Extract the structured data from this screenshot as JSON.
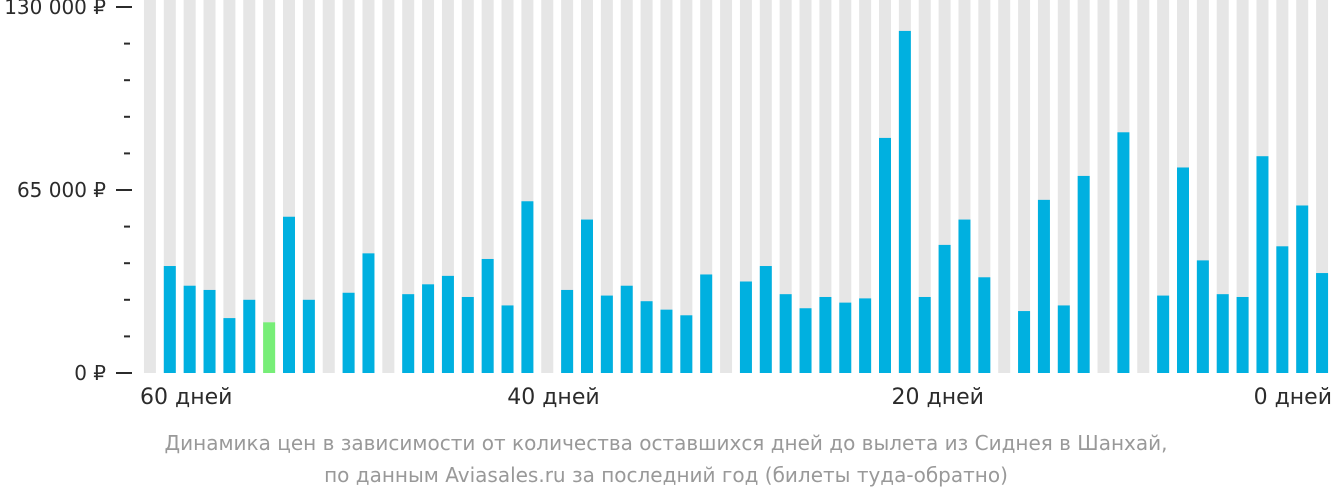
{
  "chart_data": {
    "type": "bar",
    "title": "",
    "xlabel": "",
    "ylabel": "",
    "ylim": [
      0,
      130000
    ],
    "y_ticks": [
      0,
      65000,
      130000
    ],
    "y_tick_labels": [
      "0 ₽",
      "65 000 ₽",
      "130 000 ₽"
    ],
    "x_range_days": [
      61,
      0
    ],
    "x_ticks": [
      60,
      40,
      20,
      0
    ],
    "x_tick_labels": [
      "60 дней",
      "40 дней",
      "20 дней",
      "0 дней"
    ],
    "grid": true,
    "legend": "none",
    "colors": {
      "bar": "#00b0e0",
      "highlight": "#77ee77",
      "background_column": "#e6e6e6",
      "axis_text": "#2b2b2b"
    },
    "series": [
      {
        "values": [
          null,
          38000,
          31000,
          29500,
          19500,
          26000,
          18000,
          55500,
          26000,
          null,
          28500,
          42500,
          null,
          28000,
          31500,
          34500,
          27000,
          40500,
          24000,
          61000,
          null,
          29500,
          54500,
          27500,
          31000,
          25500,
          22500,
          20500,
          35000,
          null,
          32500,
          38000,
          28000,
          23000,
          27000,
          25000,
          26500,
          83500,
          121500,
          27000,
          45500,
          54500,
          34000,
          null,
          22000,
          61500,
          24000,
          70000,
          null,
          85500,
          null,
          27500,
          73000,
          40000,
          28000,
          27000,
          77000,
          45000,
          59500,
          35500
        ],
        "highlight_index": 6
      }
    ]
  },
  "caption": {
    "line1": "Динамика цен в зависимости от количества оставшихся дней до вылета из Сиднея в Шанхай,",
    "line2": "по данным Aviasales.ru за последний год (билеты туда-обратно)"
  }
}
